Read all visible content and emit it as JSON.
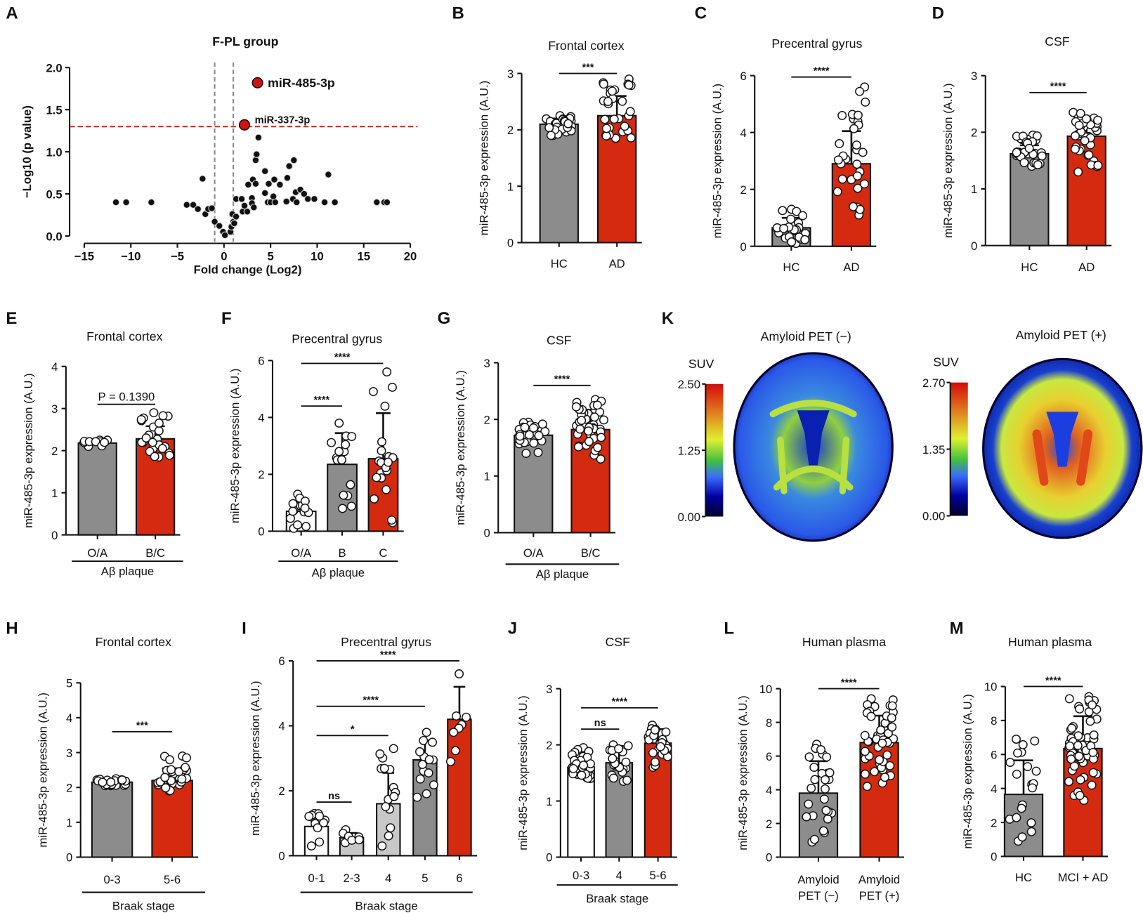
{
  "ylabel_common": "miR-485-3p expression (A.U.)",
  "chart_data": [
    {
      "panel": "A",
      "type": "scatter",
      "title": "F-PL group",
      "xlabel": "Fold change (Log2)",
      "ylabel": "−Log10 (p value)",
      "xlim": [
        -15,
        20
      ],
      "ylim": [
        0,
        2
      ],
      "xticks": [
        "−15",
        "−10",
        "−5",
        "0",
        "5",
        "10",
        "15",
        "20"
      ],
      "xtick_values": [
        -15,
        -10,
        -5,
        0,
        5,
        10,
        15,
        20
      ],
      "yticks": [
        "0.0",
        "0.5",
        "1.0",
        "1.5",
        "2.0"
      ],
      "ytick_values": [
        0,
        0.5,
        1,
        1.5,
        2
      ],
      "threshold_y": 1.3,
      "threshold_x": [
        -1,
        1
      ],
      "highlight": [
        {
          "label": "miR-485-3p",
          "x": 3.6,
          "y": 1.82
        },
        {
          "label": "miR-337-3p",
          "x": 2.2,
          "y": 1.32
        }
      ],
      "points": [
        [
          -11.6,
          0.4
        ],
        [
          -10.5,
          0.4
        ],
        [
          -7.8,
          0.4
        ],
        [
          -4,
          0.37
        ],
        [
          -3.3,
          0.37
        ],
        [
          -2.8,
          0.32
        ],
        [
          -2.3,
          0.68
        ],
        [
          -2,
          0.26
        ],
        [
          -1.7,
          0.32
        ],
        [
          -1.3,
          0.33
        ],
        [
          -1,
          0.17
        ],
        [
          -0.5,
          0.12
        ],
        [
          -0.1,
          0.05
        ],
        [
          0.1,
          0.01
        ],
        [
          0.7,
          0.05
        ],
        [
          0.8,
          0.11
        ],
        [
          0.9,
          0.26
        ],
        [
          1,
          0.17
        ],
        [
          1.1,
          0.15
        ],
        [
          1.3,
          0.23
        ],
        [
          1.3,
          0.44
        ],
        [
          1.9,
          0.44
        ],
        [
          2,
          0.29
        ],
        [
          2.2,
          0.36
        ],
        [
          2.5,
          0.29
        ],
        [
          2.6,
          0.61
        ],
        [
          3,
          0.45
        ],
        [
          3,
          0.39
        ],
        [
          3.1,
          0.67
        ],
        [
          3.2,
          0.34
        ],
        [
          3.4,
          0.62
        ],
        [
          3.4,
          0.9
        ],
        [
          3.5,
          0.97
        ],
        [
          3.7,
          1.17
        ],
        [
          4.4,
          0.77
        ],
        [
          4.4,
          0.51
        ],
        [
          4.7,
          0.4
        ],
        [
          4.8,
          0.62
        ],
        [
          5,
          0.4
        ],
        [
          5.3,
          0.47
        ],
        [
          5.4,
          0.67
        ],
        [
          5.5,
          0.4
        ],
        [
          6,
          0.61
        ],
        [
          6.7,
          0.41
        ],
        [
          6.8,
          0.69
        ],
        [
          7,
          0.83
        ],
        [
          7.4,
          0.44
        ],
        [
          7.5,
          0.9
        ],
        [
          7.7,
          0.52
        ],
        [
          7.8,
          0.4
        ],
        [
          8.2,
          0.55
        ],
        [
          8.6,
          0.5
        ],
        [
          9,
          0.44
        ],
        [
          9.7,
          0.44
        ],
        [
          10.8,
          0.4
        ],
        [
          11.2,
          0.73
        ],
        [
          11.9,
          0.4
        ],
        [
          16.4,
          0.4
        ],
        [
          17.2,
          0.4
        ],
        [
          17.5,
          0.4
        ]
      ]
    },
    {
      "panel": "B",
      "type": "bar",
      "title": "Frontal cortex",
      "ylim": [
        0,
        3
      ],
      "yticks": [
        "0",
        "1",
        "2",
        "3"
      ],
      "group_label": "",
      "groups": [
        {
          "label_lines": [
            "HC"
          ],
          "mean": 2.1,
          "sd": 0.1,
          "n": 30,
          "range": [
            1.9,
            2.25
          ],
          "color": "#8c8c8c"
        },
        {
          "label_lines": [
            "AD"
          ],
          "mean": 2.25,
          "sd": 0.35,
          "n": 30,
          "range": [
            1.85,
            2.9
          ],
          "color": "#d42a0f"
        }
      ],
      "comparisons": [
        {
          "from": 0,
          "to": 1,
          "y": 3.0,
          "label": "***"
        }
      ]
    },
    {
      "panel": "C",
      "type": "bar",
      "title": "Precentral gyrus",
      "ylim": [
        0,
        6
      ],
      "yticks": [
        "0",
        "2",
        "4",
        "6"
      ],
      "group_label": "",
      "groups": [
        {
          "label_lines": [
            "HC"
          ],
          "mean": 0.65,
          "sd": 0.35,
          "n": 25,
          "range": [
            0.1,
            1.3
          ],
          "color": "#8c8c8c"
        },
        {
          "label_lines": [
            "AD"
          ],
          "mean": 2.9,
          "sd": 1.15,
          "n": 30,
          "range": [
            1.1,
            5.6
          ],
          "color": "#d42a0f"
        }
      ],
      "comparisons": [
        {
          "from": 0,
          "to": 1,
          "y": 5.95,
          "label": "****"
        }
      ]
    },
    {
      "panel": "D",
      "type": "bar",
      "title": "CSF",
      "ylim": [
        0,
        3
      ],
      "yticks": [
        "0",
        "1",
        "2",
        "3"
      ],
      "group_label": "",
      "groups": [
        {
          "label_lines": [
            "HC"
          ],
          "mean": 1.62,
          "sd": 0.15,
          "n": 30,
          "range": [
            1.4,
            1.95
          ],
          "color": "#8c8c8c"
        },
        {
          "label_lines": [
            "AD"
          ],
          "mean": 1.93,
          "sd": 0.3,
          "n": 40,
          "range": [
            1.3,
            2.35
          ],
          "color": "#d42a0f"
        }
      ],
      "comparisons": [
        {
          "from": 0,
          "to": 1,
          "y": 2.7,
          "label": "****"
        }
      ]
    },
    {
      "panel": "E",
      "type": "bar",
      "title": "Frontal cortex",
      "ylim": [
        0,
        4
      ],
      "yticks": [
        "0",
        "1",
        "2",
        "3",
        "4"
      ],
      "group_label": "Aβ plaque",
      "groups": [
        {
          "label_lines": [
            "O/A"
          ],
          "mean": 2.18,
          "sd": 0.05,
          "n": 10,
          "range": [
            2.1,
            2.25
          ],
          "color": "#8c8c8c"
        },
        {
          "label_lines": [
            "B/C"
          ],
          "mean": 2.28,
          "sd": 0.3,
          "n": 25,
          "range": [
            1.85,
            2.9
          ],
          "color": "#d42a0f"
        }
      ],
      "comparisons": [
        {
          "from": 0,
          "to": 1,
          "y": 3.1,
          "label": "P = 0.1390"
        }
      ]
    },
    {
      "panel": "F",
      "type": "bar",
      "title": "Precentral gyrus",
      "ylim": [
        0,
        6
      ],
      "yticks": [
        "0",
        "2",
        "4",
        "6"
      ],
      "group_label": "Aβ plaque",
      "groups": [
        {
          "label_lines": [
            "O/A"
          ],
          "mean": 0.7,
          "sd": 0.35,
          "n": 15,
          "range": [
            0.1,
            1.3
          ],
          "color": "#ffffff"
        },
        {
          "label_lines": [
            "B"
          ],
          "mean": 2.35,
          "sd": 1.1,
          "n": 15,
          "range": [
            0.8,
            3.8
          ],
          "color": "#8c8c8c"
        },
        {
          "label_lines": [
            "C"
          ],
          "mean": 2.55,
          "sd": 1.6,
          "n": 20,
          "range": [
            0.3,
            5.6
          ],
          "color": "#d42a0f"
        }
      ],
      "comparisons": [
        {
          "from": 0,
          "to": 1,
          "y": 4.4,
          "label": "****"
        },
        {
          "from": 0,
          "to": 2,
          "y": 5.9,
          "label": "****"
        }
      ]
    },
    {
      "panel": "G",
      "type": "bar",
      "title": "CSF",
      "ylim": [
        0,
        3
      ],
      "yticks": [
        "0",
        "1",
        "2",
        "3"
      ],
      "group_label": "Aβ plaque",
      "groups": [
        {
          "label_lines": [
            "O/A"
          ],
          "mean": 1.72,
          "sd": 0.18,
          "n": 30,
          "range": [
            1.4,
            1.95
          ],
          "color": "#8c8c8c"
        },
        {
          "label_lines": [
            "B/C"
          ],
          "mean": 1.82,
          "sd": 0.35,
          "n": 40,
          "range": [
            1.3,
            2.35
          ],
          "color": "#d42a0f"
        }
      ],
      "comparisons": [
        {
          "from": 0,
          "to": 1,
          "y": 2.6,
          "label": "****"
        }
      ]
    },
    {
      "panel": "H",
      "type": "bar",
      "title": "Frontal cortex",
      "ylim": [
        0,
        5
      ],
      "yticks": [
        "0",
        "1",
        "2",
        "3",
        "4",
        "5"
      ],
      "group_label": "Braak stage",
      "groups": [
        {
          "label_lines": [
            "0-3"
          ],
          "mean": 2.15,
          "sd": 0.05,
          "n": 25,
          "range": [
            2.05,
            2.25
          ],
          "color": "#8c8c8c"
        },
        {
          "label_lines": [
            "5-6"
          ],
          "mean": 2.2,
          "sd": 0.35,
          "n": 30,
          "range": [
            1.9,
            2.9
          ],
          "color": "#d42a0f"
        }
      ],
      "comparisons": [
        {
          "from": 0,
          "to": 1,
          "y": 3.6,
          "label": "***"
        }
      ]
    },
    {
      "panel": "I",
      "type": "bar",
      "title": "Precentral gyrus",
      "ylim": [
        0,
        6
      ],
      "yticks": [
        "0",
        "2",
        "4",
        "6"
      ],
      "group_label": "Braak stage",
      "groups": [
        {
          "label_lines": [
            "0-1"
          ],
          "mean": 0.9,
          "sd": 0.3,
          "n": 12,
          "range": [
            0.3,
            1.3
          ],
          "color": "#ffffff"
        },
        {
          "label_lines": [
            "2-3"
          ],
          "mean": 0.55,
          "sd": 0.15,
          "n": 7,
          "range": [
            0.4,
            0.8
          ],
          "color": "#c8c8c8"
        },
        {
          "label_lines": [
            "4"
          ],
          "mean": 1.6,
          "sd": 0.95,
          "n": 15,
          "range": [
            0.3,
            3.3
          ],
          "color": "#c8c8c8"
        },
        {
          "label_lines": [
            "5"
          ],
          "mean": 2.95,
          "sd": 0.6,
          "n": 14,
          "range": [
            1.8,
            3.8
          ],
          "color": "#8c8c8c"
        },
        {
          "label_lines": [
            "6"
          ],
          "mean": 4.2,
          "sd": 1.0,
          "n": 8,
          "range": [
            2.9,
            5.6
          ],
          "color": "#d42a0f"
        }
      ],
      "comparisons": [
        {
          "from": 0,
          "to": 1,
          "y": 1.65,
          "label": "ns"
        },
        {
          "from": 0,
          "to": 2,
          "y": 3.7,
          "label": "*"
        },
        {
          "from": 0,
          "to": 3,
          "y": 4.6,
          "label": "****"
        },
        {
          "from": 0,
          "to": 4,
          "y": 6.0,
          "label": "****"
        }
      ]
    },
    {
      "panel": "J",
      "type": "bar",
      "title": "CSF",
      "ylim": [
        0,
        3
      ],
      "yticks": [
        "0",
        "1",
        "2",
        "3"
      ],
      "group_label": "Braak stage",
      "groups": [
        {
          "label_lines": [
            "0-3"
          ],
          "mean": 1.6,
          "sd": 0.1,
          "n": 30,
          "range": [
            1.4,
            1.95
          ],
          "color": "#ffffff"
        },
        {
          "label_lines": [
            "4"
          ],
          "mean": 1.68,
          "sd": 0.3,
          "n": 20,
          "range": [
            1.35,
            2.0
          ],
          "color": "#8c8c8c"
        },
        {
          "label_lines": [
            "5-6"
          ],
          "mean": 2.03,
          "sd": 0.25,
          "n": 25,
          "range": [
            1.6,
            2.35
          ],
          "color": "#d42a0f"
        }
      ],
      "comparisons": [
        {
          "from": 0,
          "to": 1,
          "y": 2.28,
          "label": "ns"
        },
        {
          "from": 0,
          "to": 2,
          "y": 2.66,
          "label": "****"
        }
      ]
    },
    {
      "panel": "L",
      "type": "bar",
      "title": "Human plasma",
      "ylim": [
        0,
        10
      ],
      "yticks": [
        "0",
        "2",
        "4",
        "6",
        "8",
        "10"
      ],
      "group_label": "",
      "groups": [
        {
          "label_lines": [
            "Amyloid",
            "PET (−)"
          ],
          "mean": 3.8,
          "sd": 1.9,
          "n": 27,
          "range": [
            0.9,
            6.7
          ],
          "color": "#8c8c8c"
        },
        {
          "label_lines": [
            "Amyloid",
            "PET (+)"
          ],
          "mean": 6.8,
          "sd": 1.6,
          "n": 50,
          "range": [
            4.2,
            9.4
          ],
          "color": "#d42a0f"
        }
      ],
      "comparisons": [
        {
          "from": 0,
          "to": 1,
          "y": 10,
          "label": "****"
        }
      ]
    },
    {
      "panel": "M",
      "type": "bar",
      "title": "Human plasma",
      "ylim": [
        0,
        10
      ],
      "yticks": [
        "0",
        "2",
        "4",
        "6",
        "8",
        "10"
      ],
      "group_label": "",
      "groups": [
        {
          "label_lines": [
            "HC"
          ],
          "mean": 3.65,
          "sd": 2.0,
          "n": 20,
          "range": [
            0.9,
            6.9
          ],
          "color": "#8c8c8c"
        },
        {
          "label_lines": [
            "MCI + AD"
          ],
          "mean": 6.35,
          "sd": 1.9,
          "n": 60,
          "range": [
            3.3,
            9.4
          ],
          "color": "#d42a0f"
        }
      ],
      "comparisons": [
        {
          "from": 0,
          "to": 1,
          "y": 10,
          "label": "****"
        }
      ]
    }
  ],
  "pet_images": {
    "panel": "K",
    "images": [
      {
        "title": "Amyloid PET (−)",
        "scale_label": "SUV",
        "ticks": [
          "2.50",
          "1.25",
          "0.00"
        ],
        "tick_values": [
          2.5,
          1.25,
          0
        ]
      },
      {
        "title": "Amyloid PET (+)",
        "scale_label": "SUV",
        "ticks": [
          "2.70",
          "1.35",
          "0.00"
        ],
        "tick_values": [
          2.7,
          1.35,
          0
        ]
      }
    ]
  }
}
